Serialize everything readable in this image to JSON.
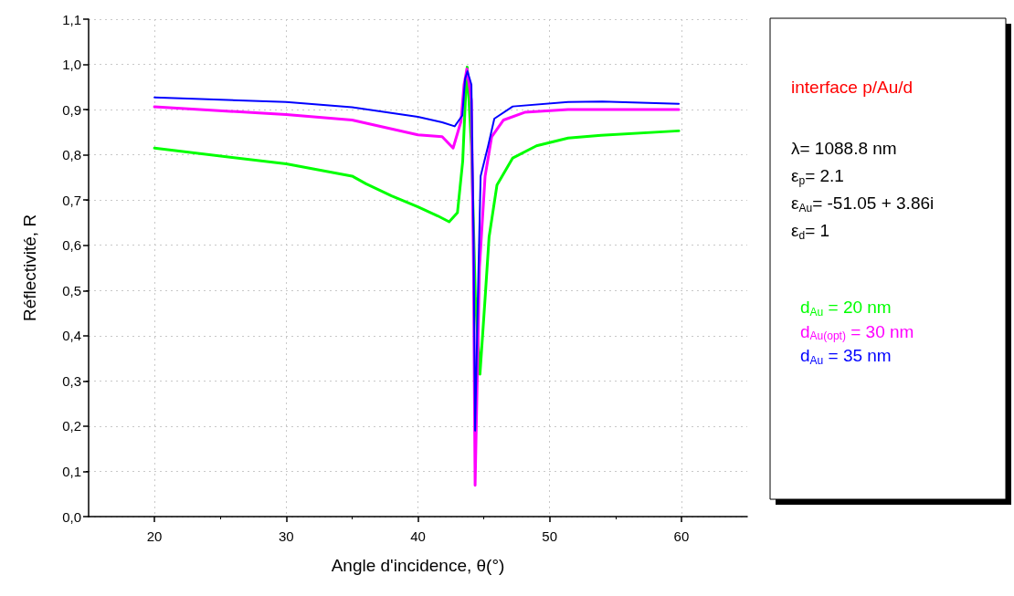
{
  "chart_data": {
    "type": "line",
    "xlabel": "Angle d'incidence, θ(°)",
    "ylabel": "Réflectivité, R",
    "legend_title": "interface p/Au/d",
    "annotations": [
      "λ= 1088.8 nm",
      "ε$_{p}$= 2.1",
      "ε$_{Au}$= -51.05 + 3.86i",
      "ε$_{d}$= 1"
    ],
    "series": [
      {
        "name": "d$_{Au}$ = 20 nm",
        "color": "#00ff00",
        "x": [
          20,
          30,
          35,
          36.06,
          38,
          40,
          41.5,
          42.37,
          43.0,
          43.4,
          43.6,
          43.74,
          44.06,
          44.36,
          44.71,
          45.1,
          45.4,
          46.0,
          47.2,
          49.0,
          51.4,
          53.9,
          59.8
        ],
        "values": [
          0.815,
          0.78,
          0.753,
          0.736,
          0.709,
          0.685,
          0.665,
          0.652,
          0.672,
          0.786,
          0.92,
          0.994,
          0.82,
          0.483,
          0.315,
          0.483,
          0.618,
          0.733,
          0.793,
          0.82,
          0.837,
          0.843,
          0.853
        ]
      },
      {
        "name": "d$_{Au(opt)}$ = 30 nm",
        "color": "#ff00ff",
        "x": [
          20,
          30,
          35,
          40,
          41.84,
          42.67,
          43.27,
          43.5,
          43.72,
          44.06,
          44.22,
          44.34,
          44.67,
          45.1,
          45.6,
          46.5,
          48.1,
          51.4,
          59.8
        ],
        "values": [
          0.906,
          0.889,
          0.877,
          0.844,
          0.84,
          0.815,
          0.874,
          0.955,
          0.99,
          0.92,
          0.55,
          0.069,
          0.55,
          0.753,
          0.84,
          0.877,
          0.894,
          0.9,
          0.9
        ]
      },
      {
        "name": "d$_{Au}$ = 35 nm",
        "color": "#0000ff",
        "x": [
          20,
          30,
          35,
          40,
          41.84,
          42.79,
          43.37,
          43.58,
          43.76,
          44.06,
          44.22,
          44.34,
          44.6,
          44.76,
          45.33,
          45.8,
          47.2,
          51.4,
          54,
          59.8
        ],
        "values": [
          0.927,
          0.917,
          0.905,
          0.884,
          0.872,
          0.863,
          0.887,
          0.968,
          0.985,
          0.955,
          0.618,
          0.19,
          0.55,
          0.753,
          0.82,
          0.88,
          0.907,
          0.917,
          0.918,
          0.913
        ]
      }
    ],
    "xlim": [
      15,
      65
    ],
    "xticks": [
      20,
      30,
      40,
      50,
      60
    ],
    "ylim": [
      0,
      1.1
    ],
    "yticks": [
      {
        "value": 0,
        "label": "0,0"
      },
      {
        "value": 0.1,
        "label": "0,1"
      },
      {
        "value": 0.2,
        "label": "0,2"
      },
      {
        "value": 0.3,
        "label": "0,3"
      },
      {
        "value": 0.4,
        "label": "0,4"
      },
      {
        "value": 0.5,
        "label": "0,5"
      },
      {
        "value": 0.6,
        "label": "0,6"
      },
      {
        "value": 0.7,
        "label": "0,7"
      },
      {
        "value": 0.8,
        "label": "0,8"
      },
      {
        "value": 0.9,
        "label": "0,9"
      },
      {
        "value": 1.0,
        "label": "1,0"
      },
      {
        "value": 1.1,
        "label": "1,1"
      }
    ],
    "grid": true,
    "legend": "right",
    "marker": "none",
    "line_style": "solid"
  }
}
